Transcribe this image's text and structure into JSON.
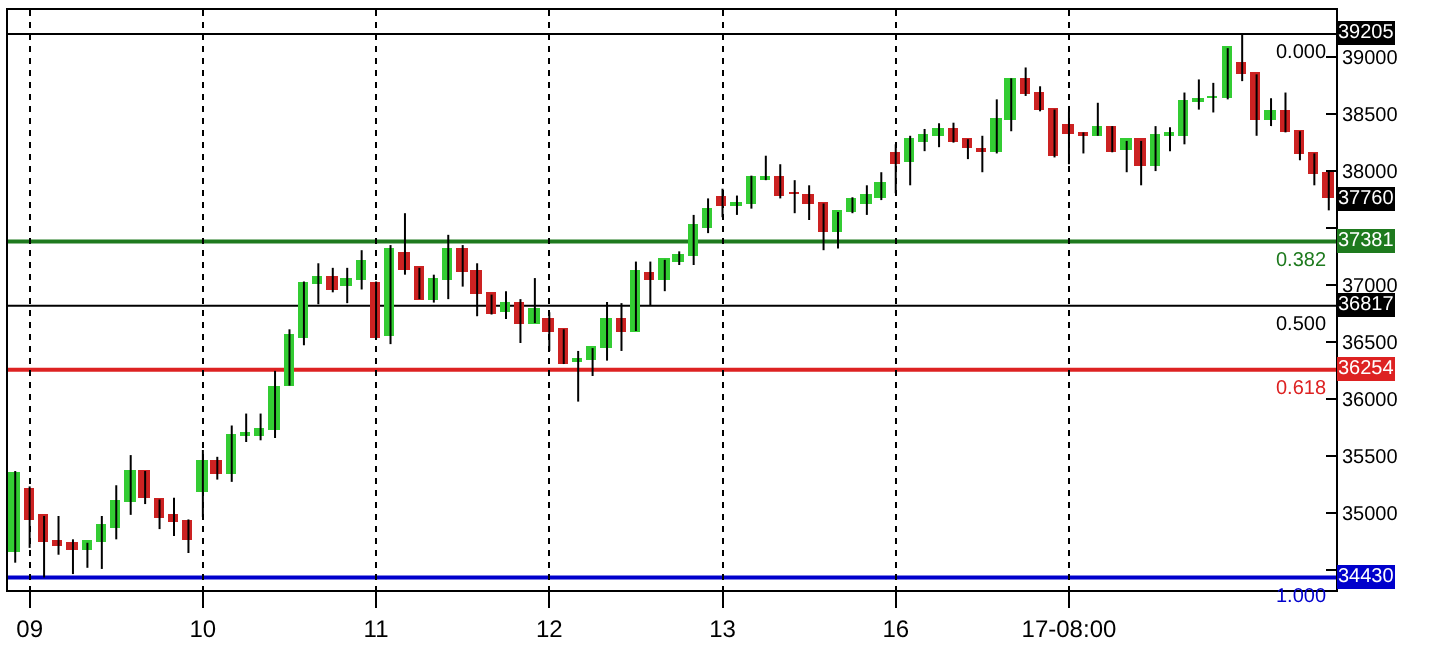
{
  "chart_data": {
    "type": "candlestick",
    "categories": [
      null,
      "09",
      null,
      null,
      null,
      null,
      null,
      null,
      null,
      null,
      null,
      null,
      null,
      "10",
      null,
      null,
      null,
      null,
      null,
      null,
      null,
      null,
      null,
      null,
      null,
      "11",
      null,
      null,
      null,
      null,
      null,
      null,
      null,
      null,
      null,
      null,
      null,
      "12",
      null,
      null,
      null,
      null,
      null,
      null,
      null,
      null,
      null,
      null,
      null,
      "13",
      null,
      null,
      null,
      null,
      null,
      null,
      null,
      null,
      null,
      null,
      null,
      "16",
      null,
      null,
      null,
      null,
      null,
      null,
      null,
      null,
      null,
      null,
      null,
      "17-08:00",
      null,
      null,
      null,
      null,
      null,
      null,
      null,
      null,
      null,
      null,
      null,
      null,
      null,
      null,
      null,
      null,
      null,
      null
    ],
    "ohlc": [
      [
        34650,
        35365,
        34560,
        35345
      ],
      [
        35190,
        35230,
        34690,
        34940
      ],
      [
        34970,
        34970,
        34430,
        34735
      ],
      [
        34735,
        34970,
        34630,
        34715
      ],
      [
        34720,
        34765,
        34460,
        34665
      ],
      [
        34665,
        34735,
        34515,
        34735
      ],
      [
        34735,
        34970,
        34505,
        34875
      ],
      [
        34870,
        35240,
        34765,
        35085
      ],
      [
        35085,
        35505,
        34980,
        35365
      ],
      [
        35365,
        35365,
        35075,
        35130
      ],
      [
        35115,
        35115,
        34855,
        34960
      ],
      [
        34970,
        35130,
        34795,
        34910
      ],
      [
        34910,
        34940,
        34645,
        34765
      ],
      [
        35175,
        35550,
        34960,
        35450
      ],
      [
        35450,
        35490,
        35290,
        35345
      ],
      [
        35340,
        35765,
        35270,
        35680
      ],
      [
        35680,
        35870,
        35620,
        35690
      ],
      [
        35665,
        35870,
        35635,
        35720
      ],
      [
        35725,
        36245,
        35655,
        36100
      ],
      [
        36115,
        36610,
        36115,
        36550
      ],
      [
        36540,
        37030,
        36470,
        37015
      ],
      [
        37015,
        37190,
        36830,
        37060
      ],
      [
        37055,
        37150,
        36935,
        36960
      ],
      [
        36985,
        37150,
        36840,
        37040
      ],
      [
        37050,
        37305,
        36960,
        37195
      ],
      [
        37005,
        37030,
        36525,
        36540
      ],
      [
        36550,
        37350,
        36480,
        37305
      ],
      [
        37280,
        37630,
        37090,
        37135
      ],
      [
        37150,
        37150,
        36875,
        36875
      ],
      [
        36875,
        37090,
        36845,
        37040
      ],
      [
        37045,
        37440,
        36875,
        37305
      ],
      [
        37300,
        37350,
        36985,
        37105
      ],
      [
        37105,
        37190,
        36725,
        36915
      ],
      [
        36915,
        36915,
        36740,
        36740
      ],
      [
        36760,
        36945,
        36700,
        36840
      ],
      [
        36840,
        36875,
        36490,
        36665
      ],
      [
        36665,
        37060,
        36665,
        36780
      ],
      [
        36690,
        36760,
        36420,
        36595
      ],
      [
        36610,
        36610,
        36305,
        36305
      ],
      [
        36330,
        36420,
        35975,
        36340
      ],
      [
        36335,
        36445,
        36200,
        36445
      ],
      [
        36445,
        36850,
        36335,
        36690
      ],
      [
        36690,
        36840,
        36420,
        36595
      ],
      [
        36595,
        37205,
        36595,
        37120
      ],
      [
        37095,
        37205,
        36815,
        37040
      ],
      [
        37040,
        37220,
        36945,
        37220
      ],
      [
        37205,
        37295,
        37175,
        37260
      ],
      [
        37260,
        37615,
        37175,
        37515
      ],
      [
        37500,
        37760,
        37455,
        37655
      ],
      [
        37760,
        37845,
        37595,
        37700
      ],
      [
        37700,
        37785,
        37615,
        37710
      ],
      [
        37715,
        37960,
        37670,
        37945
      ],
      [
        37930,
        38135,
        37920,
        37945
      ],
      [
        37945,
        38060,
        37760,
        37780
      ],
      [
        37805,
        37920,
        37630,
        37795
      ],
      [
        37785,
        37875,
        37570,
        37710
      ],
      [
        37715,
        37715,
        37305,
        37470
      ],
      [
        37470,
        37640,
        37320,
        37640
      ],
      [
        37640,
        37770,
        37630,
        37740
      ],
      [
        37710,
        37875,
        37615,
        37775
      ],
      [
        37770,
        37990,
        37745,
        37890
      ],
      [
        38155,
        38235,
        37805,
        38060
      ],
      [
        38075,
        38310,
        37875,
        38265
      ],
      [
        38250,
        38370,
        38175,
        38310
      ],
      [
        38305,
        38420,
        38210,
        38360
      ],
      [
        38360,
        38425,
        38250,
        38250
      ],
      [
        38265,
        38280,
        38105,
        38195
      ],
      [
        38180,
        38310,
        37990,
        38170
      ],
      [
        38175,
        38630,
        38155,
        38445
      ],
      [
        38445,
        38815,
        38350,
        38805
      ],
      [
        38805,
        38910,
        38660,
        38675
      ],
      [
        38675,
        38745,
        38525,
        38535
      ],
      [
        38540,
        38540,
        38120,
        38130
      ],
      [
        38395,
        38525,
        38060,
        38320
      ],
      [
        38325,
        38340,
        38155,
        38315
      ],
      [
        38310,
        38600,
        38310,
        38385
      ],
      [
        38385,
        38395,
        38165,
        38175
      ],
      [
        38190,
        38265,
        37990,
        38265
      ],
      [
        38265,
        38265,
        37875,
        38050
      ],
      [
        38050,
        38395,
        38000,
        38310
      ],
      [
        38315,
        38385,
        38175,
        38325
      ],
      [
        38310,
        38690,
        38235,
        38610
      ],
      [
        38600,
        38805,
        38540,
        38630
      ],
      [
        38635,
        38775,
        38515,
        38645
      ],
      [
        38640,
        39080,
        38630,
        39080
      ],
      [
        38935,
        39205,
        38790,
        38860
      ],
      [
        38850,
        38850,
        38310,
        38445
      ],
      [
        38455,
        38640,
        38395,
        38515
      ],
      [
        38515,
        38690,
        38340,
        38340
      ],
      [
        38350,
        38350,
        38095,
        38155
      ],
      [
        38155,
        38155,
        37875,
        37980
      ],
      [
        37980,
        38000,
        37655,
        37760
      ]
    ],
    "colors": [
      "#33cc33",
      "#cc2222",
      "#cc2222",
      "#cc2222",
      "#cc2222",
      "#33cc33",
      "#33cc33",
      "#33cc33",
      "#33cc33",
      "#cc2222",
      "#cc2222",
      "#cc2222",
      "#cc2222",
      "#33cc33",
      "#cc2222",
      "#33cc33",
      "#33cc33",
      "#33cc33",
      "#33cc33",
      "#33cc33",
      "#33cc33",
      "#33cc33",
      "#cc2222",
      "#33cc33",
      "#33cc33",
      "#cc2222",
      "#33cc33",
      "#cc2222",
      "#cc2222",
      "#33cc33",
      "#33cc33",
      "#cc2222",
      "#cc2222",
      "#cc2222",
      "#33cc33",
      "#cc2222",
      "#33cc33",
      "#cc2222",
      "#cc2222",
      "#33cc33",
      "#33cc33",
      "#33cc33",
      "#cc2222",
      "#33cc33",
      "#cc2222",
      "#33cc33",
      "#33cc33",
      "#33cc33",
      "#33cc33",
      "#cc2222",
      "#33cc33",
      "#33cc33",
      "#33cc33",
      "#cc2222",
      "#cc2222",
      "#cc2222",
      "#cc2222",
      "#33cc33",
      "#33cc33",
      "#33cc33",
      "#33cc33",
      "#cc2222",
      "#33cc33",
      "#33cc33",
      "#33cc33",
      "#cc2222",
      "#cc2222",
      "#cc2222",
      "#33cc33",
      "#33cc33",
      "#cc2222",
      "#cc2222",
      "#cc2222",
      "#cc2222",
      "#cc2222",
      "#33cc33",
      "#cc2222",
      "#33cc33",
      "#cc2222",
      "#33cc33",
      "#33cc33",
      "#33cc33",
      "#33cc33",
      "#33cc33",
      "#33cc33",
      "#cc2222",
      "#cc2222",
      "#33cc33",
      "#cc2222",
      "#cc2222",
      "#cc2222",
      "#cc2222"
    ],
    "ylim": [
      34320,
      39415
    ],
    "yticks": [
      {
        "value": 34500,
        "label": null
      },
      35000,
      35500,
      36000,
      36500,
      37000,
      {
        "value": 37500,
        "label": null
      },
      38000,
      38500,
      39000
    ],
    "ref_lines": [
      {
        "axis": "y",
        "value": 39205,
        "label": "39205",
        "color": "#000000"
      },
      {
        "axis": "y",
        "value": 37381,
        "label": "37381",
        "color": "#1e7a1e"
      },
      {
        "axis": "y",
        "value": 36817,
        "label": "36817",
        "color": "#000000"
      },
      {
        "axis": "y",
        "value": 36254,
        "label": "36254",
        "color": "#dd2222"
      },
      {
        "axis": "y",
        "value": 34430,
        "label": "34430",
        "color": "#0000cc"
      }
    ],
    "annotations": [
      {
        "text": "0.000",
        "y": 39205
      },
      {
        "text": "37760",
        "y": 37760
      },
      {
        "text": "0.382",
        "y": 37381
      },
      {
        "text": "0.500",
        "y": 36817
      },
      {
        "text": "0.618",
        "y": 36254
      },
      {
        "text": "1.000",
        "y": 34430
      }
    ],
    "grid": "x"
  }
}
